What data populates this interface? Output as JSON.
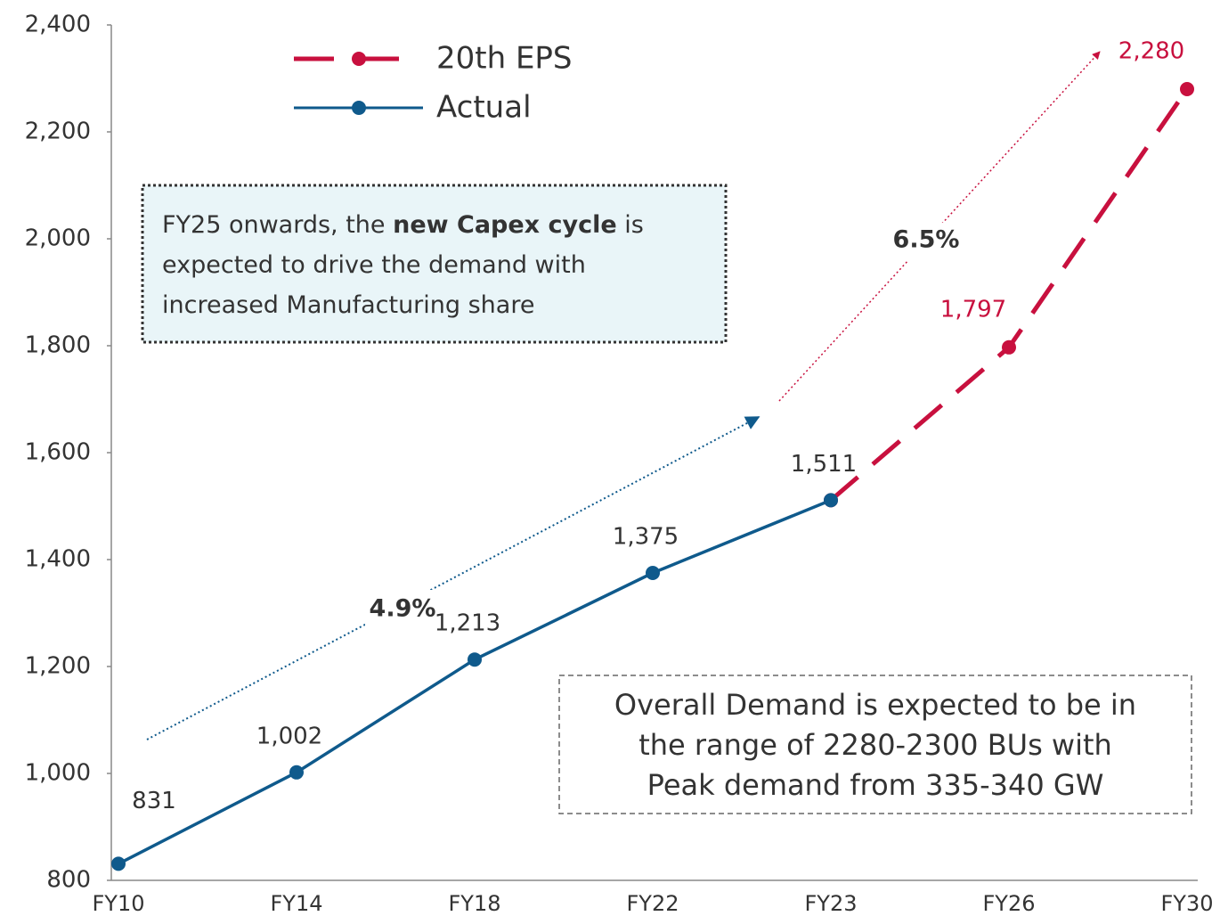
{
  "chart_data": {
    "type": "line",
    "categories": [
      "FY10",
      "FY14",
      "FY18",
      "FY22",
      "FY23",
      "FY26",
      "FY30"
    ],
    "series": [
      {
        "name": "20th EPS",
        "color": "#c8103e",
        "dashed": true,
        "values": [
          null,
          null,
          null,
          null,
          1511,
          1797,
          2280
        ],
        "value_labels": [
          null,
          null,
          null,
          null,
          null,
          "1,797",
          "2,280"
        ]
      },
      {
        "name": "Actual",
        "color": "#0f5a8c",
        "dashed": false,
        "values": [
          831,
          1002,
          1213,
          1375,
          1511,
          null,
          null
        ],
        "value_labels": [
          "831",
          "1,002",
          "1,213",
          "1,375",
          "1,511",
          null,
          null
        ]
      }
    ],
    "ylim": [
      800,
      2400
    ],
    "yticks": [
      800,
      {
        "value": 1000,
        "label": "1,000"
      },
      {
        "value": 1200,
        "label": "1,200"
      },
      {
        "value": 1400,
        "label": "1,400"
      },
      {
        "value": 1600,
        "label": "1,600"
      },
      {
        "value": 1800,
        "label": "1,800"
      },
      {
        "value": 2000,
        "label": "2,000"
      },
      {
        "value": 2200,
        "label": "2,200"
      },
      {
        "value": 2400,
        "label": "2,400"
      }
    ],
    "grid": false,
    "legend": "top-left",
    "annotations": [
      {
        "text": "4.9%"
      },
      {
        "text": "6.5%"
      },
      {
        "lines": [
          [
            {
              "text": "FY25 onwards, the "
            },
            {
              "text": "new Capex cycle",
              "bold": true
            },
            {
              "text": " is"
            }
          ],
          [
            {
              "text": "expected to drive the demand with"
            }
          ],
          [
            {
              "text": "increased Manufacturing share"
            }
          ]
        ]
      },
      {
        "lines": [
          "Overall Demand is expected to be in",
          "the range of 2280-2300 BUs with",
          "Peak demand from 335-340 GW"
        ]
      }
    ]
  }
}
